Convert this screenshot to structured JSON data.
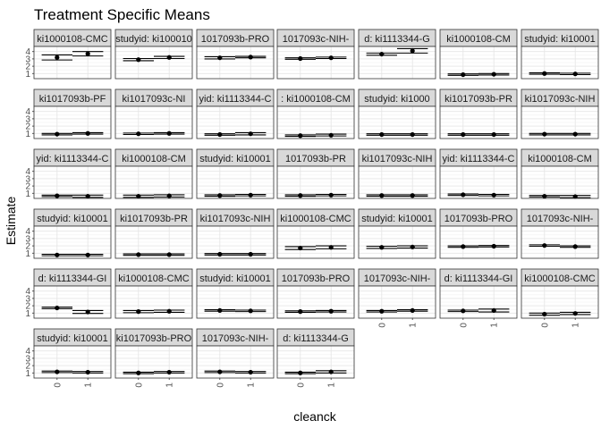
{
  "chart_data": {
    "type": "scatter",
    "title": "Treatment Specific Means",
    "xlabel": "cleanck",
    "ylabel": "Estimate",
    "x_categories": [
      "0",
      "1"
    ],
    "y_ticks": [
      1,
      2,
      3,
      4
    ],
    "ylim": [
      0.3,
      4.7
    ],
    "grid": true,
    "facets": [
      {
        "label": "ki1000108-CMC",
        "values": [
          3.2,
          3.7
        ],
        "ci": [
          [
            2.85,
            3.55
          ],
          [
            3.4,
            4.0
          ]
        ]
      },
      {
        "label": "studyid: ki100010",
        "values": [
          2.9,
          3.2
        ],
        "ci": [
          [
            2.75,
            3.05
          ],
          [
            3.05,
            3.35
          ]
        ]
      },
      {
        "label": "1017093b-PRO",
        "values": [
          3.15,
          3.25
        ],
        "ci": [
          [
            3.0,
            3.3
          ],
          [
            3.15,
            3.35
          ]
        ]
      },
      {
        "label": "1017093c-NIH-",
        "values": [
          3.05,
          3.15
        ],
        "ci": [
          [
            2.95,
            3.15
          ],
          [
            3.05,
            3.25
          ]
        ]
      },
      {
        "label": "d: ki1113344-G",
        "values": [
          3.65,
          4.1
        ],
        "ci": [
          [
            3.5,
            3.8
          ],
          [
            3.8,
            4.4
          ]
        ]
      },
      {
        "label": "ki1000108-CM",
        "values": [
          0.85,
          0.9
        ],
        "ci": [
          [
            0.75,
            0.95
          ],
          [
            0.8,
            1.0
          ]
        ]
      },
      {
        "label": "studyid: ki10001",
        "values": [
          1.0,
          0.95
        ],
        "ci": [
          [
            0.9,
            1.1
          ],
          [
            0.85,
            1.05
          ]
        ]
      },
      {
        "label": "ki1017093b-PF",
        "values": [
          0.9,
          1.0
        ],
        "ci": [
          [
            0.8,
            1.0
          ],
          [
            0.9,
            1.1
          ]
        ]
      },
      {
        "label": "ki1017093c-NI",
        "values": [
          0.95,
          1.0
        ],
        "ci": [
          [
            0.85,
            1.05
          ],
          [
            0.9,
            1.1
          ]
        ]
      },
      {
        "label": "yid: ki1113344-C",
        "values": [
          0.85,
          0.95
        ],
        "ci": [
          [
            0.75,
            0.95
          ],
          [
            0.8,
            1.1
          ]
        ]
      },
      {
        "label": ": ki1000108-CM",
        "values": [
          0.7,
          0.75
        ],
        "ci": [
          [
            0.6,
            0.8
          ],
          [
            0.65,
            0.9
          ]
        ]
      },
      {
        "label": "studyid: ki1000",
        "values": [
          0.85,
          0.85
        ],
        "ci": [
          [
            0.75,
            0.95
          ],
          [
            0.75,
            0.95
          ]
        ]
      },
      {
        "label": "ki1017093b-PR",
        "values": [
          0.85,
          0.85
        ],
        "ci": [
          [
            0.75,
            0.95
          ],
          [
            0.75,
            0.95
          ]
        ]
      },
      {
        "label": "ki1017093c-NIH",
        "values": [
          0.9,
          0.9
        ],
        "ci": [
          [
            0.8,
            1.0
          ],
          [
            0.8,
            1.0
          ]
        ]
      },
      {
        "label": "yid: ki1113344-C",
        "values": [
          0.65,
          0.6
        ],
        "ci": [
          [
            0.55,
            0.75
          ],
          [
            0.45,
            0.75
          ]
        ]
      },
      {
        "label": "ki1000108-CM",
        "values": [
          0.6,
          0.65
        ],
        "ci": [
          [
            0.45,
            0.75
          ],
          [
            0.5,
            0.8
          ]
        ]
      },
      {
        "label": "studyid: ki10001",
        "values": [
          0.7,
          0.75
        ],
        "ci": [
          [
            0.6,
            0.8
          ],
          [
            0.65,
            0.85
          ]
        ]
      },
      {
        "label": "1017093b-PR",
        "values": [
          0.7,
          0.75
        ],
        "ci": [
          [
            0.6,
            0.8
          ],
          [
            0.65,
            0.85
          ]
        ]
      },
      {
        "label": "ki1017093c-NIH",
        "values": [
          0.7,
          0.7
        ],
        "ci": [
          [
            0.6,
            0.8
          ],
          [
            0.6,
            0.8
          ]
        ]
      },
      {
        "label": "yid: ki1113344-C",
        "values": [
          0.8,
          0.75
        ],
        "ci": [
          [
            0.7,
            0.9
          ],
          [
            0.65,
            0.85
          ]
        ]
      },
      {
        "label": "ki1000108-CM",
        "values": [
          0.6,
          0.55
        ],
        "ci": [
          [
            0.5,
            0.7
          ],
          [
            0.4,
            0.7
          ]
        ]
      },
      {
        "label": "studyid: ki10001",
        "values": [
          0.75,
          0.75
        ],
        "ci": [
          [
            0.65,
            0.85
          ],
          [
            0.65,
            0.85
          ]
        ]
      },
      {
        "label": "ki1017093b-PR",
        "values": [
          0.8,
          0.8
        ],
        "ci": [
          [
            0.7,
            0.9
          ],
          [
            0.7,
            0.9
          ]
        ]
      },
      {
        "label": "ki1017093c-NIH",
        "values": [
          0.85,
          0.85
        ],
        "ci": [
          [
            0.75,
            0.95
          ],
          [
            0.75,
            0.95
          ]
        ]
      },
      {
        "label": "ki1000108-CMC",
        "values": [
          1.7,
          1.8
        ],
        "ci": [
          [
            1.5,
            1.9
          ],
          [
            1.6,
            2.0
          ]
        ]
      },
      {
        "label": "studyid: ki10001",
        "values": [
          1.8,
          1.85
        ],
        "ci": [
          [
            1.65,
            1.95
          ],
          [
            1.7,
            2.0
          ]
        ]
      },
      {
        "label": "1017093b-PRO",
        "values": [
          1.9,
          1.95
        ],
        "ci": [
          [
            1.8,
            2.0
          ],
          [
            1.85,
            2.05
          ]
        ]
      },
      {
        "label": "1017093c-NIH-",
        "values": [
          2.05,
          1.9
        ],
        "ci": [
          [
            1.95,
            2.15
          ],
          [
            1.8,
            2.0
          ]
        ]
      },
      {
        "label": "d: ki1113344-GI",
        "values": [
          1.7,
          1.15
        ],
        "ci": [
          [
            1.6,
            1.8
          ],
          [
            0.95,
            1.35
          ]
        ]
      },
      {
        "label": "ki1000108-CMC",
        "values": [
          1.2,
          1.25
        ],
        "ci": [
          [
            1.05,
            1.35
          ],
          [
            1.1,
            1.4
          ]
        ]
      },
      {
        "label": "studyid: ki10001",
        "values": [
          1.35,
          1.3
        ],
        "ci": [
          [
            1.25,
            1.45
          ],
          [
            1.2,
            1.4
          ]
        ]
      },
      {
        "label": "1017093b-PRO",
        "values": [
          1.2,
          1.25
        ],
        "ci": [
          [
            1.1,
            1.3
          ],
          [
            1.15,
            1.35
          ]
        ]
      },
      {
        "label": "1017093c-NIH-",
        "values": [
          1.25,
          1.35
        ],
        "ci": [
          [
            1.15,
            1.35
          ],
          [
            1.25,
            1.45
          ]
        ]
      },
      {
        "label": "d: ki1113344-GI",
        "values": [
          1.3,
          1.35
        ],
        "ci": [
          [
            1.2,
            1.4
          ],
          [
            1.15,
            1.55
          ]
        ]
      },
      {
        "label": "ki1000108-CMC",
        "values": [
          0.85,
          0.95
        ],
        "ci": [
          [
            0.7,
            1.0
          ],
          [
            0.8,
            1.1
          ]
        ]
      },
      {
        "label": "studyid: ki10001",
        "values": [
          1.15,
          1.1
        ],
        "ci": [
          [
            1.05,
            1.25
          ],
          [
            1.0,
            1.2
          ]
        ]
      },
      {
        "label": "ki1017093b-PRO",
        "values": [
          1.0,
          1.1
        ],
        "ci": [
          [
            0.9,
            1.1
          ],
          [
            1.0,
            1.2
          ]
        ]
      },
      {
        "label": "1017093c-NIH-",
        "values": [
          1.15,
          1.1
        ],
        "ci": [
          [
            1.05,
            1.25
          ],
          [
            1.0,
            1.2
          ]
        ]
      },
      {
        "label": "d: ki1113344-G",
        "values": [
          1.0,
          1.15
        ],
        "ci": [
          [
            0.9,
            1.1
          ],
          [
            1.0,
            1.3
          ]
        ]
      }
    ]
  }
}
